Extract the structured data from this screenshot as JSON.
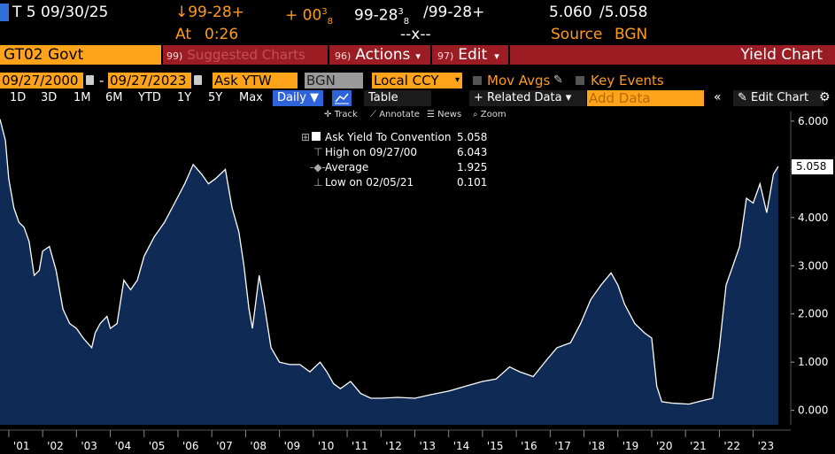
{
  "quote": {
    "ticker": "T 5 09/30/25",
    "price_change": "↓99-28+",
    "change": "+ 00",
    "change_sup": "3",
    "change_sub": "8",
    "bid": "99-28",
    "bid_sup": "3",
    "bid_sub": "8",
    "ask": "/99-28+",
    "yield_bid": "5.060",
    "yield_ask": "/5.058",
    "at_label": "At",
    "at_time": "0:26",
    "size": "--x--",
    "source_label": "Source",
    "source": "BGN"
  },
  "menu": {
    "security": "GT02 Govt",
    "suggested_num": "99)",
    "suggested": "Suggested Charts",
    "actions_num": "96)",
    "actions": "Actions",
    "edit_num": "97)",
    "edit": "Edit",
    "title": "Yield Chart"
  },
  "settings": {
    "start_date": "09/27/2000",
    "dash": "-",
    "end_date": "09/27/2023",
    "field": "Ask YTW",
    "source": "BGN",
    "currency": "Local CCY",
    "mov_avgs": "Mov Avgs",
    "key_events": "Key Events"
  },
  "periods": {
    "items": [
      "1D",
      "3D",
      "1M",
      "6M",
      "YTD",
      "1Y",
      "5Y",
      "Max"
    ],
    "frequency": "Daily ▼",
    "table": "Table",
    "related": "+ Related Data ▾",
    "add_data_placeholder": "Add Data",
    "edit_chart": "Edit Chart"
  },
  "tools": {
    "track": "Track",
    "annotate": "Annotate",
    "news": "News",
    "zoom": "Zoom"
  },
  "legend": {
    "series_label": "Ask Yield To Convention",
    "series_value": "5.058",
    "high_label": "High on 09/27/00",
    "high_value": "6.043",
    "avg_label": "Average",
    "avg_value": "1.925",
    "low_label": "Low on 02/05/21",
    "low_value": "0.101"
  },
  "colors": {
    "accent_orange": "#ffa31a",
    "menu_red": "#9c1c24",
    "area_fill": "#0f2a55",
    "line": "#ffffff"
  },
  "chart_data": {
    "type": "area",
    "series": [
      {
        "name": "Ask Yield To Convention",
        "x": [
          2000.74,
          2000.9,
          2001.0,
          2001.15,
          2001.3,
          2001.45,
          2001.6,
          2001.75,
          2001.9,
          2002.0,
          2002.2,
          2002.4,
          2002.6,
          2002.8,
          2003.0,
          2003.2,
          2003.45,
          2003.55,
          2003.7,
          2003.9,
          2004.0,
          2004.2,
          2004.4,
          2004.6,
          2004.8,
          2005.0,
          2005.3,
          2005.6,
          2005.9,
          2006.2,
          2006.45,
          2006.7,
          2006.9,
          2007.1,
          2007.4,
          2007.6,
          2007.8,
          2007.95,
          2008.1,
          2008.2,
          2008.4,
          2008.55,
          2008.75,
          2009.0,
          2009.3,
          2009.6,
          2009.9,
          2010.2,
          2010.4,
          2010.6,
          2010.8,
          2011.1,
          2011.4,
          2011.7,
          2012.0,
          2012.5,
          2013.0,
          2013.5,
          2014.0,
          2014.5,
          2015.0,
          2015.4,
          2015.8,
          2016.1,
          2016.5,
          2016.9,
          2017.2,
          2017.6,
          2017.9,
          2018.2,
          2018.5,
          2018.8,
          2019.0,
          2019.2,
          2019.5,
          2019.8,
          2020.0,
          2020.15,
          2020.3,
          2020.6,
          2021.1,
          2021.5,
          2021.8,
          2022.0,
          2022.2,
          2022.4,
          2022.6,
          2022.8,
          2023.0,
          2023.2,
          2023.4,
          2023.6,
          2023.74
        ],
        "y": [
          6.04,
          5.6,
          4.8,
          4.2,
          3.9,
          3.8,
          3.5,
          2.8,
          2.9,
          3.3,
          3.4,
          2.9,
          2.1,
          1.8,
          1.7,
          1.5,
          1.3,
          1.6,
          1.8,
          1.95,
          1.7,
          1.8,
          2.7,
          2.5,
          2.7,
          3.2,
          3.6,
          3.9,
          4.3,
          4.7,
          5.1,
          4.9,
          4.7,
          4.8,
          5.0,
          4.2,
          3.7,
          3.0,
          2.1,
          1.7,
          2.8,
          2.2,
          1.3,
          1.0,
          0.95,
          0.95,
          0.8,
          1.0,
          0.8,
          0.55,
          0.45,
          0.6,
          0.35,
          0.25,
          0.25,
          0.27,
          0.25,
          0.33,
          0.4,
          0.5,
          0.6,
          0.65,
          0.9,
          0.8,
          0.7,
          1.05,
          1.3,
          1.4,
          1.8,
          2.3,
          2.6,
          2.85,
          2.6,
          2.2,
          1.8,
          1.6,
          1.5,
          0.5,
          0.18,
          0.15,
          0.13,
          0.2,
          0.25,
          1.3,
          2.6,
          3.0,
          3.4,
          4.4,
          4.3,
          4.7,
          4.1,
          4.9,
          5.06
        ]
      }
    ],
    "x_ticks": [
      "'01",
      "'02",
      "'03",
      "'04",
      "'05",
      "'06",
      "'07",
      "'08",
      "'09",
      "'10",
      "'11",
      "'12",
      "'13",
      "'14",
      "'15",
      "'16",
      "'17",
      "'18",
      "'19",
      "'20",
      "'21",
      "'22",
      "'23"
    ],
    "y_ticks": [
      "0.000",
      "1.000",
      "2.000",
      "3.000",
      "4.000",
      "5.000",
      "6.000"
    ],
    "ylim": [
      -0.3,
      6.2
    ],
    "xlim": [
      2000.74,
      2023.9
    ],
    "last_value_label": "5.058",
    "grid": false,
    "legend_position": "top-center"
  }
}
